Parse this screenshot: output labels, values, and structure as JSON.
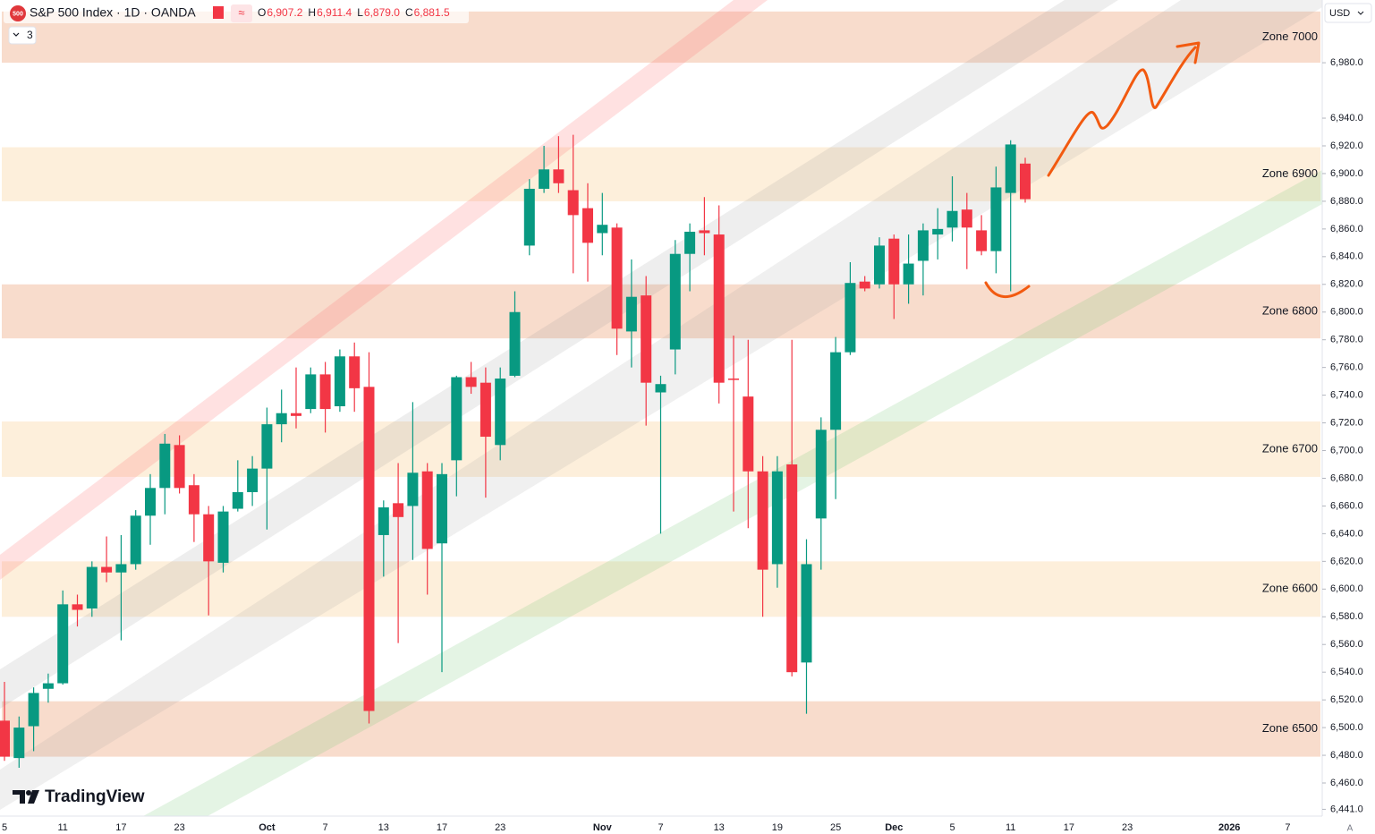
{
  "header": {
    "logo": "500",
    "symbol": "S&P 500 Index · 1D · OANDA",
    "ohlc": [
      {
        "label": "O",
        "value": "6,907.2"
      },
      {
        "label": "H",
        "value": "6,911.4"
      },
      {
        "label": "L",
        "value": "6,879.0"
      },
      {
        "label": "C",
        "value": "6,881.5"
      }
    ],
    "indicators": "3",
    "currency": "USD",
    "brand": "TradingView",
    "scale_mode": "A"
  },
  "chart_data": {
    "type": "candlestick",
    "categories": [
      "5",
      null,
      null,
      null,
      "11",
      null,
      null,
      null,
      "17",
      null,
      null,
      null,
      "23",
      null,
      null,
      null,
      null,
      null,
      "Oct",
      null,
      null,
      null,
      "7",
      null,
      null,
      null,
      "13",
      null,
      null,
      null,
      "17",
      null,
      null,
      null,
      "23",
      null,
      null,
      null,
      null,
      null,
      null,
      "Nov",
      null,
      null,
      null,
      "7",
      null,
      null,
      null,
      "13",
      null,
      null,
      null,
      "19",
      null,
      null,
      null,
      "25",
      null,
      null,
      null,
      "Dec",
      null,
      null,
      null,
      "5",
      null,
      null,
      null,
      "11",
      null,
      null,
      null,
      "17",
      null,
      null,
      null,
      "23",
      null,
      null,
      null,
      null,
      null,
      null,
      "2026",
      null,
      null,
      null,
      "7",
      null,
      null
    ],
    "open": [
      6505,
      6478,
      6501,
      6528,
      6532,
      6589,
      6586,
      6616,
      6612,
      6618,
      6653,
      6673,
      6704,
      6675,
      6654,
      6619,
      6658,
      6670,
      6687,
      6719,
      6727,
      6730,
      6755,
      6732,
      6768,
      6746,
      6639,
      6662,
      6660,
      6685,
      6633,
      6693,
      6753,
      6749,
      6704,
      6754,
      6848,
      6889,
      6903,
      6888,
      6875,
      6857,
      6861,
      6786,
      6812,
      6742,
      6773,
      6842,
      6859,
      6856,
      6752,
      6739,
      6685,
      6618,
      6690,
      6547,
      6651,
      6715,
      6771,
      6822,
      6820,
      6853,
      6820,
      6837,
      6856,
      6861,
      6874,
      6859,
      6844,
      6886,
      6907.2,
      null,
      null,
      null,
      null,
      null,
      null,
      null,
      null,
      null,
      null,
      null,
      null,
      null,
      null,
      null,
      null,
      null,
      null,
      null,
      null
    ],
    "high": [
      6533,
      6508,
      6529,
      6539,
      6599,
      6596,
      6620,
      6638,
      6639,
      6657,
      6683,
      6712,
      6711,
      6683,
      6660,
      6660,
      6693,
      6696,
      6731,
      6744,
      6760,
      6760,
      6764,
      6773,
      6778,
      6771,
      6664,
      6691,
      6735,
      6691,
      6691,
      6754,
      6764,
      6760,
      6760,
      6815,
      6896,
      6920,
      6927,
      6928,
      6893,
      6886,
      6864,
      6838,
      6826,
      6754,
      6852,
      6864,
      6883,
      6877,
      6783,
      6780,
      6696,
      6696,
      6780,
      6636,
      6724,
      6782,
      6836,
      6826,
      6854,
      6856,
      6856,
      6864,
      6875,
      6898,
      6886,
      6870,
      6905,
      6924,
      6911.4,
      null,
      null,
      null,
      null,
      null,
      null,
      null,
      null,
      null,
      null,
      null,
      null,
      null,
      null,
      null,
      null,
      null,
      null,
      null,
      null
    ],
    "low": [
      6476,
      6471,
      6483,
      6518,
      6531,
      6573,
      6580,
      6605,
      6563,
      6614,
      6632,
      6654,
      6669,
      6634,
      6581,
      6612,
      6656,
      6660,
      6643,
      6706,
      6716,
      6727,
      6713,
      6728,
      6728,
      6503,
      6609,
      6561,
      6621,
      6596,
      6540,
      6667,
      6741,
      6666,
      6693,
      6753,
      6841,
      6886,
      6886,
      6828,
      6822,
      6841,
      6769,
      6760,
      6718,
      6640,
      6755,
      6815,
      6841,
      6734,
      6656,
      6644,
      6580,
      6601,
      6537,
      6510,
      6614,
      6665,
      6769,
      6815,
      6817,
      6795,
      6806,
      6812,
      6838,
      6851,
      6831,
      6841,
      6828,
      6815,
      6879.0,
      null,
      null,
      null,
      null,
      null,
      null,
      null,
      null,
      null,
      null,
      null,
      null,
      null,
      null,
      null,
      null,
      null,
      null,
      null,
      null
    ],
    "close": [
      6479,
      6500,
      6525,
      6532,
      6589,
      6585,
      6616,
      6612,
      6618,
      6653,
      6673,
      6705,
      6673,
      6654,
      6620,
      6656,
      6670,
      6687,
      6719,
      6727,
      6725,
      6755,
      6730,
      6768,
      6745,
      6512,
      6659,
      6652,
      6684,
      6629,
      6683,
      6753,
      6746,
      6710,
      6752,
      6800,
      6889,
      6903,
      6893,
      6870,
      6850,
      6863,
      6788,
      6811,
      6749,
      6748,
      6842,
      6858,
      6857,
      6749,
      6751,
      6685,
      6614,
      6685,
      6540,
      6618,
      6715,
      6771,
      6821,
      6817,
      6848,
      6820,
      6835,
      6859,
      6860,
      6873,
      6861,
      6844,
      6890,
      6921,
      6881.5,
      null,
      null,
      null,
      null,
      null,
      null,
      null,
      null,
      null,
      null,
      null,
      null,
      null,
      null,
      null,
      null,
      null,
      null,
      null,
      null
    ],
    "up_color": "#089981",
    "down_color": "#f23645",
    "ylim": [
      6436.1,
      7025.3
    ],
    "yticks": [
      {
        "value": 6980,
        "label": "6,980.0"
      },
      {
        "value": 6940,
        "label": "6,940.0"
      },
      {
        "value": 6920,
        "label": "6,920.0"
      },
      {
        "value": 6900,
        "label": "6,900.0"
      },
      {
        "value": 6880,
        "label": "6,880.0"
      },
      {
        "value": 6860,
        "label": "6,860.0"
      },
      {
        "value": 6840,
        "label": "6,840.0"
      },
      {
        "value": 6820,
        "label": "6,820.0"
      },
      {
        "value": 6800,
        "label": "6,800.0"
      },
      {
        "value": 6780,
        "label": "6,780.0"
      },
      {
        "value": 6760,
        "label": "6,760.0"
      },
      {
        "value": 6740,
        "label": "6,740.0"
      },
      {
        "value": 6720,
        "label": "6,720.0"
      },
      {
        "value": 6700,
        "label": "6,700.0"
      },
      {
        "value": 6680,
        "label": "6,680.0"
      },
      {
        "value": 6660,
        "label": "6,660.0"
      },
      {
        "value": 6640,
        "label": "6,640.0"
      },
      {
        "value": 6620,
        "label": "6,620.0"
      },
      {
        "value": 6600,
        "label": "6,600.0"
      },
      {
        "value": 6580,
        "label": "6,580.0"
      },
      {
        "value": 6560,
        "label": "6,560.0"
      },
      {
        "value": 6540,
        "label": "6,540.0"
      },
      {
        "value": 6520,
        "label": "6,520.0"
      },
      {
        "value": 6500,
        "label": "6,500.0"
      },
      {
        "value": 6480,
        "label": "6,480.0"
      },
      {
        "value": 6460,
        "label": "6,460.0"
      },
      {
        "value": 6441,
        "label": "6,441.0"
      }
    ],
    "grid": false,
    "zones": [
      {
        "label": "Zone 7000",
        "low": 6980,
        "high": 7017,
        "color": "#f8dccc"
      },
      {
        "label": "Zone 6900",
        "low": 6880,
        "high": 6919,
        "color": "#fdefdb"
      },
      {
        "label": "Zone 6800",
        "low": 6781,
        "high": 6820,
        "color": "#f8dccc"
      },
      {
        "label": "Zone 6700",
        "low": 6681,
        "high": 6721,
        "color": "#fdefdb"
      },
      {
        "label": "Zone 6600",
        "low": 6580,
        "high": 6620,
        "color": "#fdefdb"
      },
      {
        "label": "Zone 6500",
        "low": 6479,
        "high": 6519,
        "color": "#f8dccc"
      }
    ]
  }
}
